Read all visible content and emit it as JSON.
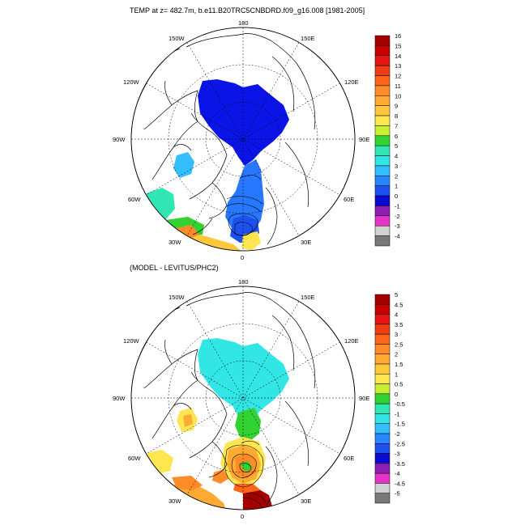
{
  "top_panel": {
    "title": "TEMP at z= 482.7m, b.e11.B20TRC5CNBDRD.f09_g16.008 [1981-2005]",
    "lon_labels": [
      "180",
      "150E",
      "120E",
      "90E",
      "60E",
      "30E",
      "0",
      "30W",
      "60W",
      "90W",
      "120W",
      "150W"
    ],
    "colorbar": {
      "labels": [
        "16",
        "15",
        "14",
        "13",
        "12",
        "11",
        "10",
        "9",
        "8",
        "7",
        "6",
        "5",
        "4",
        "3",
        "2",
        "1",
        "0",
        "-1",
        "-2",
        "-3",
        "-4"
      ],
      "colors": [
        "#a50000",
        "#c80000",
        "#e61414",
        "#f03c14",
        "#ff6419",
        "#ff8c28",
        "#ffaa32",
        "#ffc83c",
        "#ffe650",
        "#c8f032",
        "#32d232",
        "#32e6b4",
        "#32e6e6",
        "#32beff",
        "#2887ff",
        "#1e50f0",
        "#0a0ad2",
        "#8c1eb4",
        "#e632c8",
        "#d2d2d2",
        "#787878"
      ]
    }
  },
  "bottom_panel": {
    "title": "(MODEL - LEVITUS/PHC2)",
    "lon_labels": [
      "180",
      "150E",
      "120E",
      "90E",
      "60E",
      "30E",
      "0",
      "30W",
      "60W",
      "90W",
      "120W",
      "150W"
    ],
    "colorbar": {
      "labels": [
        "5",
        "4.5",
        "4",
        "3.5",
        "3",
        "2.5",
        "2",
        "1.5",
        "1",
        "0.5",
        "0",
        "-0.5",
        "-1",
        "-1.5",
        "-2",
        "-2.5",
        "-3",
        "-3.5",
        "-4",
        "-4.5",
        "-5"
      ],
      "colors": [
        "#a50000",
        "#c80000",
        "#e61414",
        "#f03c14",
        "#ff6419",
        "#ff8c28",
        "#ffaa32",
        "#ffc83c",
        "#ffe650",
        "#c8f032",
        "#32d232",
        "#32e6b4",
        "#32e6e6",
        "#32beff",
        "#2887ff",
        "#1e50f0",
        "#0a0ad2",
        "#8c1eb4",
        "#e632c8",
        "#d2d2d2",
        "#787878"
      ]
    }
  }
}
